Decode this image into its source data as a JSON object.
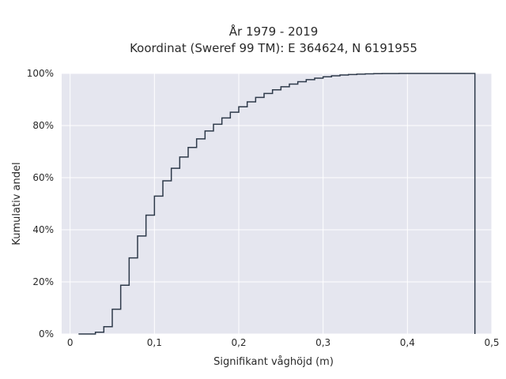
{
  "chart_data": {
    "type": "line",
    "title_lines": [
      "År 1979 - 2019",
      "Koordinat (Sweref 99 TM): E 364624, N 6191955"
    ],
    "xlabel": "Signifikant våghöjd (m)",
    "ylabel": "Kumulativ andel",
    "xlim": [
      -0.01,
      0.5
    ],
    "ylim": [
      0,
      100
    ],
    "x_ticks": [
      0,
      0.1,
      0.2,
      0.3,
      0.4,
      0.5
    ],
    "x_tick_labels": [
      "0",
      "0,1",
      "0,2",
      "0,3",
      "0,4",
      "0,5"
    ],
    "y_ticks": [
      0,
      20,
      40,
      60,
      80,
      100
    ],
    "y_tick_labels": [
      "0%",
      "20%",
      "40%",
      "60%",
      "80%",
      "100%"
    ],
    "grid": true,
    "step": true,
    "background_color": "#e5e6ef",
    "grid_color": "#ffffff",
    "line_color": "#2e3a4a",
    "series": [
      {
        "x": [
          0.01,
          0.03,
          0.04,
          0.05,
          0.06,
          0.07,
          0.08,
          0.09,
          0.1,
          0.11,
          0.12,
          0.13,
          0.14,
          0.15,
          0.16,
          0.17,
          0.18,
          0.19,
          0.2,
          0.21,
          0.22,
          0.23,
          0.24,
          0.25,
          0.26,
          0.27,
          0.28,
          0.29,
          0.3,
          0.31,
          0.32,
          0.33,
          0.34,
          0.35,
          0.36,
          0.37,
          0.38,
          0.39,
          0.4,
          0.48
        ],
        "y": [
          0,
          0.7,
          2.8,
          9.5,
          18.7,
          29.2,
          37.6,
          45.6,
          52.9,
          58.8,
          63.6,
          67.9,
          71.6,
          74.9,
          77.9,
          80.5,
          82.9,
          85.1,
          87.2,
          89.1,
          90.8,
          92.3,
          93.7,
          94.9,
          95.9,
          96.8,
          97.6,
          98.2,
          98.7,
          99.1,
          99.4,
          99.6,
          99.75,
          99.85,
          99.92,
          99.96,
          99.98,
          99.99,
          100,
          100
        ]
      }
    ]
  }
}
